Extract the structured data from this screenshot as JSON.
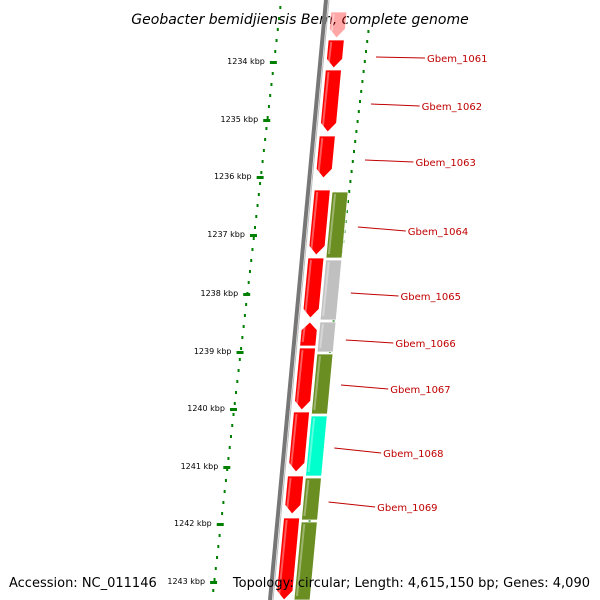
{
  "title": "Geobacter bemidjiensis Bem, complete genome",
  "footer": {
    "accession": "Accession: NC_011146",
    "topology": "Topology: circular; Length: 4,615,150 bp; Genes: 4,090"
  },
  "scale_labels": [
    "1234 kbp",
    "1235 kbp",
    "1236 kbp",
    "1237 kbp",
    "1238 kbp",
    "1239 kbp",
    "1240 kbp",
    "1241 kbp",
    "1242 kbp",
    "1243 kbp"
  ],
  "gene_labels": [
    "Gbem_1061",
    "Gbem_1062",
    "Gbem_1063",
    "Gbem_1064",
    "Gbem_1065",
    "Gbem_1066",
    "Gbem_1067",
    "Gbem_1068",
    "Gbem_1069"
  ],
  "colors": {
    "cds": "#ff0000",
    "olive": "#6b8e23",
    "gray": "#c0c0c0",
    "teal": "#00ffcc",
    "scale": "#008000",
    "label": "#c00000",
    "backbone": "#888888"
  }
}
